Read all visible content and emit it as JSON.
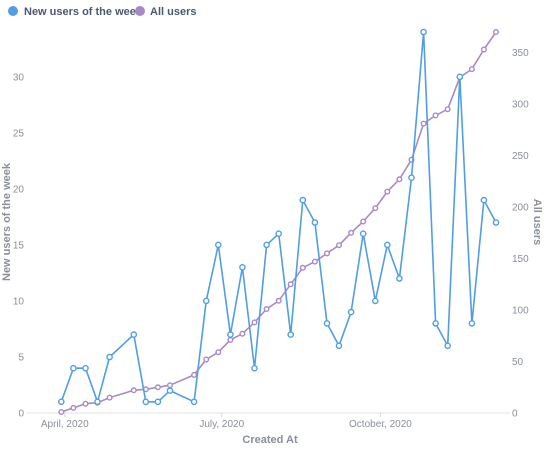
{
  "chart_data": {
    "type": "line",
    "xlabel": "Created At",
    "ylabel_left": "New users of the week",
    "ylabel_right": "All users",
    "x_ticks": [
      "April, 2020",
      "July, 2020",
      "October, 2020"
    ],
    "x": [
      "2020-03-30",
      "2020-04-06",
      "2020-04-13",
      "2020-04-20",
      "2020-04-27",
      "2020-05-11",
      "2020-05-18",
      "2020-05-25",
      "2020-06-01",
      "2020-06-15",
      "2020-06-22",
      "2020-06-29",
      "2020-07-06",
      "2020-07-13",
      "2020-07-20",
      "2020-07-27",
      "2020-08-03",
      "2020-08-10",
      "2020-08-17",
      "2020-08-24",
      "2020-08-31",
      "2020-09-07",
      "2020-09-14",
      "2020-09-21",
      "2020-09-28",
      "2020-10-05",
      "2020-10-12",
      "2020-10-19",
      "2020-10-26",
      "2020-11-02",
      "2020-11-09",
      "2020-11-16",
      "2020-11-23",
      "2020-11-30",
      "2020-12-07"
    ],
    "ylim_left": [
      0,
      34
    ],
    "yticks_left": [
      0,
      5,
      10,
      15,
      20,
      25,
      30
    ],
    "ylim_right": [
      0,
      370
    ],
    "yticks_right": [
      0,
      50,
      100,
      150,
      200,
      250,
      300,
      350
    ],
    "grid": false,
    "legend_position": "top-left",
    "series": [
      {
        "name": "New users of the week",
        "axis": "left",
        "color": "#509ee3",
        "values": [
          1,
          4,
          4,
          1,
          5,
          7,
          1,
          1,
          2,
          1,
          10,
          15,
          7,
          13,
          4,
          15,
          16,
          7,
          19,
          17,
          8,
          6,
          9,
          16,
          10,
          15,
          12,
          21,
          34,
          8,
          6,
          30,
          8,
          19,
          17
        ]
      },
      {
        "name": "All users",
        "axis": "right",
        "color": "#a989c5",
        "values": [
          1,
          5,
          9,
          10,
          15,
          22,
          23,
          25,
          27,
          37,
          52,
          59,
          71,
          77,
          88,
          101,
          109,
          125,
          141,
          147,
          155,
          163,
          175,
          186,
          199,
          215,
          227,
          246,
          281,
          289,
          295,
          326,
          334,
          353,
          370
        ]
      }
    ]
  }
}
